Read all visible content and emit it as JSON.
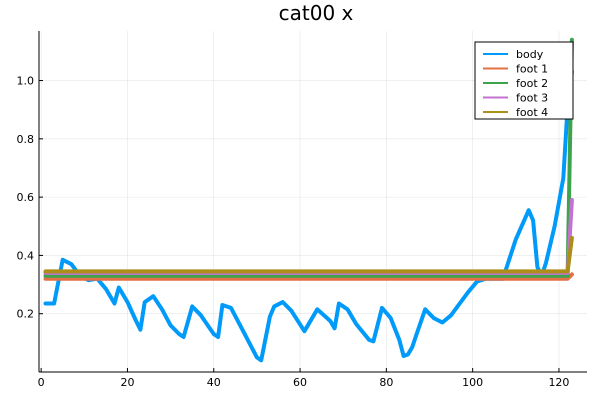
{
  "chart_data": {
    "type": "line",
    "title": "cat00 x",
    "xlabel": "",
    "ylabel": "",
    "xlim": [
      -0.5,
      126.5
    ],
    "ylim": [
      0.0,
      1.17
    ],
    "grid": true,
    "legend_position": "top-right",
    "xticks": [
      0,
      20,
      40,
      60,
      80,
      100,
      120
    ],
    "yticks": [
      0.2,
      0.4,
      0.6,
      0.8,
      1.0
    ],
    "series": [
      {
        "name": "body",
        "color": "#009AFA",
        "x": [
          1,
          3,
          5,
          7,
          9,
          11,
          13,
          15,
          17,
          18,
          20,
          22,
          23,
          24,
          26,
          28,
          30,
          32,
          33,
          35,
          37,
          40,
          41,
          42,
          44,
          47,
          50,
          51,
          53,
          54,
          56,
          58,
          61,
          64,
          67,
          68,
          69,
          71,
          73,
          76,
          77,
          79,
          81,
          83,
          84,
          85,
          86,
          87,
          89,
          91,
          93,
          95,
          97,
          99,
          101,
          103,
          107,
          110,
          113,
          114,
          115,
          116,
          117,
          119,
          121,
          122,
          123
        ],
        "y": [
          0.235,
          0.235,
          0.385,
          0.37,
          0.33,
          0.315,
          0.32,
          0.285,
          0.235,
          0.29,
          0.24,
          0.175,
          0.145,
          0.24,
          0.26,
          0.215,
          0.16,
          0.13,
          0.12,
          0.225,
          0.195,
          0.13,
          0.12,
          0.23,
          0.22,
          0.135,
          0.05,
          0.04,
          0.19,
          0.225,
          0.24,
          0.21,
          0.14,
          0.215,
          0.175,
          0.15,
          0.235,
          0.215,
          0.165,
          0.11,
          0.105,
          0.22,
          0.185,
          0.11,
          0.055,
          0.06,
          0.085,
          0.13,
          0.215,
          0.185,
          0.17,
          0.195,
          0.235,
          0.275,
          0.31,
          0.32,
          0.32,
          0.455,
          0.555,
          0.52,
          0.36,
          0.33,
          0.375,
          0.5,
          0.665,
          0.91,
          1.03
        ]
      },
      {
        "name": "foot 1",
        "color": "#E26F46",
        "x": [
          1,
          122,
          123
        ],
        "y": [
          0.32,
          0.32,
          0.335
        ]
      },
      {
        "name": "foot 2",
        "color": "#3DA44D",
        "x": [
          1,
          122,
          123
        ],
        "y": [
          0.33,
          0.33,
          1.14
        ]
      },
      {
        "name": "foot 3",
        "color": "#C371D2",
        "x": [
          1,
          122,
          123
        ],
        "y": [
          0.34,
          0.34,
          0.59
        ]
      },
      {
        "name": "foot 4",
        "color": "#AC8E18",
        "x": [
          1,
          122,
          123
        ],
        "y": [
          0.345,
          0.345,
          0.46
        ]
      }
    ]
  }
}
